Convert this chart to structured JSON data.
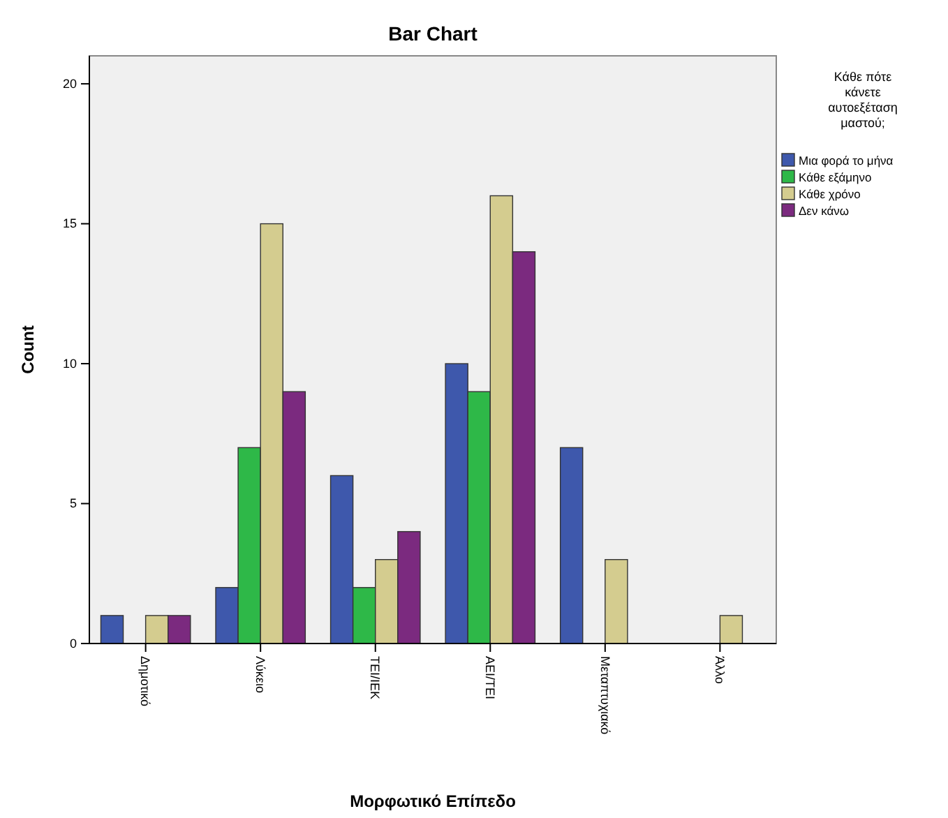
{
  "chart_data": {
    "type": "bar",
    "title": "Bar Chart",
    "xlabel": "Μορφωτικό Επίπεδο",
    "ylabel": "Count",
    "legend_title": "Κάθε πότε κάνετε αυτοεξέταση μαστού;",
    "categories": [
      "Δημοτικό",
      "Λύκειο",
      "ΤΕΙ/ΙΕΚ",
      "ΑΕΙ/ΤΕΙ",
      "Μεταπτυχιακό",
      "Άλλο"
    ],
    "series": [
      {
        "name": "Μια φορά το μήνα",
        "color": "#3e58ac",
        "values": [
          1,
          2,
          6,
          10,
          7,
          null
        ]
      },
      {
        "name": "Κάθε εξάμηνο",
        "color": "#2eb848",
        "values": [
          null,
          7,
          2,
          9,
          null,
          null
        ]
      },
      {
        "name": "Κάθε χρόνο",
        "color": "#d4cc8f",
        "values": [
          1,
          15,
          3,
          16,
          3,
          1
        ]
      },
      {
        "name": "Δεν κάνω",
        "color": "#7b2a7f",
        "values": [
          1,
          9,
          4,
          14,
          null,
          null
        ]
      }
    ],
    "ylim": [
      0,
      21
    ],
    "yticks": [
      0,
      5,
      10,
      15,
      20
    ],
    "grid": false,
    "legend": "right"
  }
}
